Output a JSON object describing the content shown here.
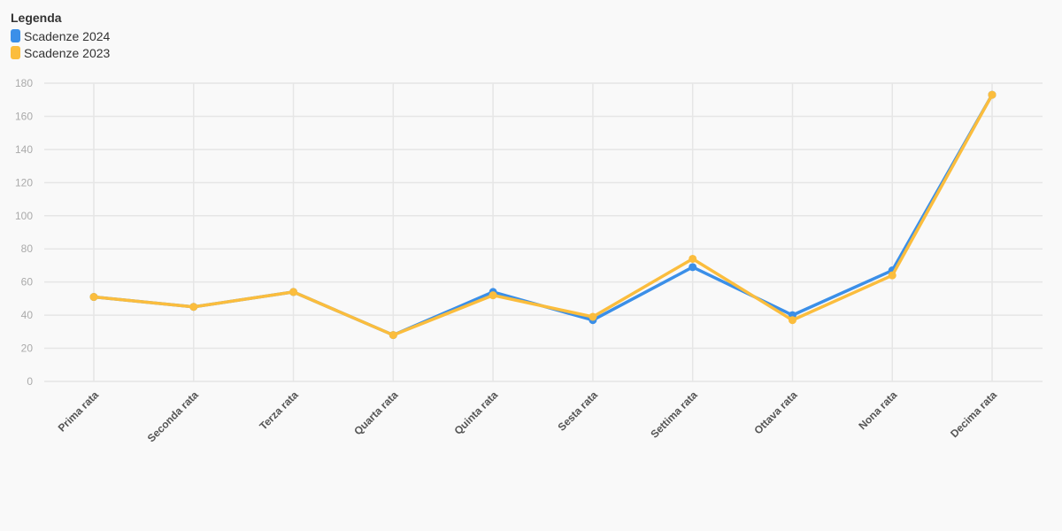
{
  "legend": {
    "title": "Legenda",
    "items": [
      {
        "label": "Scadenze 2024",
        "color": "#3b8fe8"
      },
      {
        "label": "Scadenze 2023",
        "color": "#fbbd3d"
      }
    ]
  },
  "chart_data": {
    "type": "line",
    "categories": [
      "Prima rata",
      "Seconda rata",
      "Terza rata",
      "Quarta rata",
      "Quinta rata",
      "Sesta rata",
      "Settima rata",
      "Ottava rata",
      "Nona rata",
      "Decima rata"
    ],
    "series": [
      {
        "name": "Scadenze 2024",
        "color": "#3b8fe8",
        "values": [
          51,
          45,
          54,
          28,
          54,
          37,
          69,
          40,
          67,
          173
        ]
      },
      {
        "name": "Scadenze 2023",
        "color": "#fbbd3d",
        "values": [
          51,
          45,
          54,
          28,
          52,
          39,
          74,
          37,
          64,
          173
        ]
      }
    ],
    "ylim": [
      0,
      180
    ],
    "yticks": [
      0,
      20,
      40,
      60,
      80,
      100,
      120,
      140,
      160,
      180
    ],
    "grid": true,
    "legend_position": "top-left",
    "title": "",
    "xlabel": "",
    "ylabel": ""
  }
}
